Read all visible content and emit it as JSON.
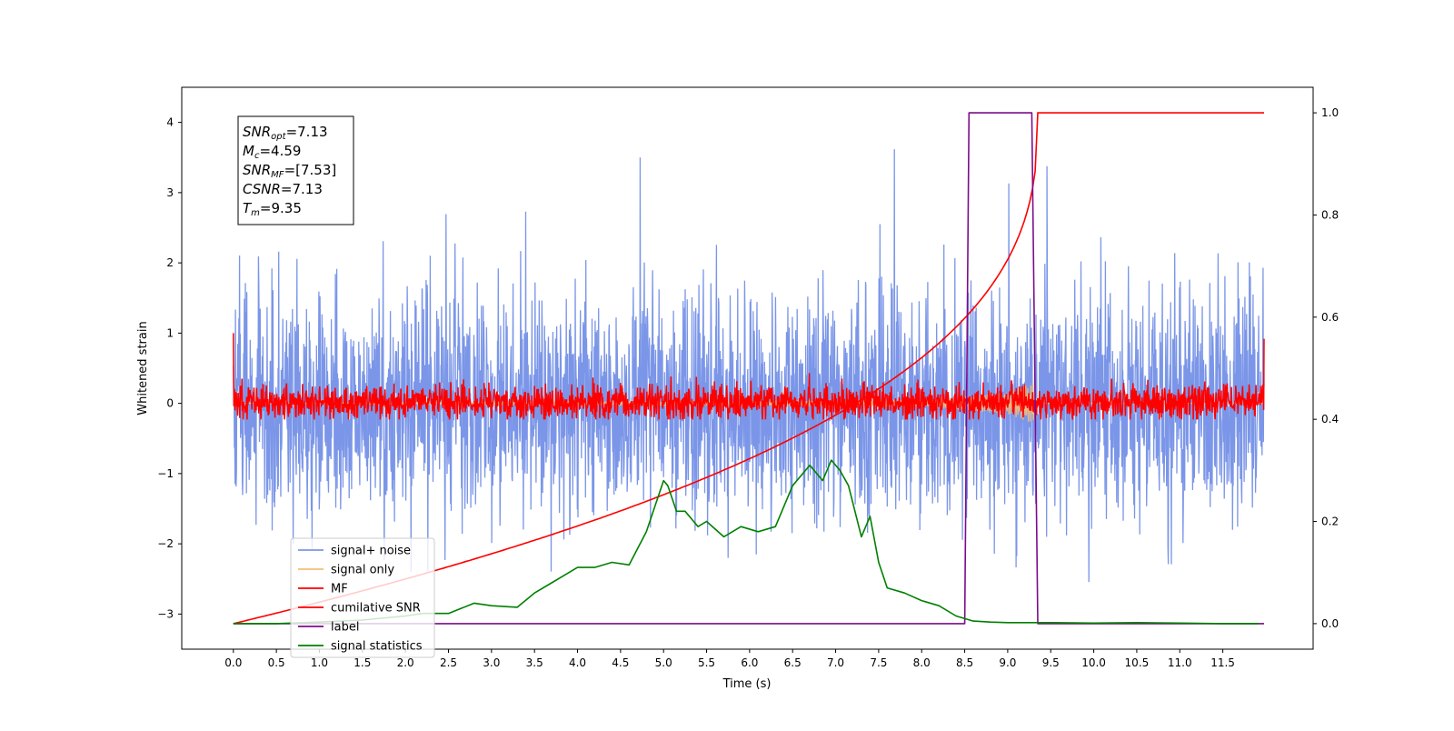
{
  "chart_data": {
    "type": "line",
    "xlabel": "Time (s)",
    "ylabel": "Whitened strain",
    "xlim": [
      -0.6,
      12.55
    ],
    "ylim": [
      -3.5,
      4.5
    ],
    "y2lim": [
      -0.05,
      1.05
    ],
    "x_ticks": [
      0.0,
      0.5,
      1.0,
      1.5,
      2.0,
      2.5,
      3.0,
      3.5,
      4.0,
      4.5,
      5.0,
      5.5,
      6.0,
      6.5,
      7.0,
      7.5,
      8.0,
      8.5,
      9.0,
      9.5,
      10.0,
      10.5,
      11.0,
      11.5
    ],
    "x_tick_labels": [
      "0.0",
      "0.5",
      "1.0",
      "1.5",
      "2.0",
      "2.5",
      "3.0",
      "3.5",
      "4.0",
      "4.5",
      "5.0",
      "5.5",
      "6.0",
      "6.5",
      "7.0",
      "7.5",
      "8.0",
      "8.5",
      "9.0",
      "9.5",
      "10.0",
      "10.5",
      "11.0",
      "11.5"
    ],
    "y_ticks": [
      -3,
      -2,
      -1,
      0,
      1,
      2,
      3,
      4
    ],
    "y_tick_labels": [
      "−3",
      "−2",
      "−1",
      "0",
      "1",
      "2",
      "3",
      "4"
    ],
    "y2_ticks": [
      0.0,
      0.2,
      0.4,
      0.6,
      0.8,
      1.0
    ],
    "y2_tick_labels": [
      "0.0",
      "0.2",
      "0.4",
      "0.6",
      "0.8",
      "1.0"
    ],
    "grid": false,
    "legend_position": "lower-left",
    "annotation": [
      {
        "label": "SNR",
        "sub": "opt",
        "value": "=7.13"
      },
      {
        "label": "M",
        "sub": "c",
        "value": "=4.59"
      },
      {
        "label": "SNR",
        "sub": "MF",
        "value": "=[7.53]"
      },
      {
        "label": "CSNR",
        "sub": "",
        "value": "=7.13"
      },
      {
        "label": "T",
        "sub": "m",
        "value": "=9.35"
      }
    ],
    "series": [
      {
        "name": "signal+ noise",
        "axis": "left",
        "color": "#7b96e8",
        "x_range": [
          0.0,
          11.98
        ],
        "noise_std": 0.95,
        "approx_max": 4.1,
        "approx_min": -3.15
      },
      {
        "name": "signal only",
        "axis": "left",
        "color": "#f5bd78",
        "x_range": [
          0.0,
          11.98
        ],
        "description_points": [
          [
            0.0,
            0.0
          ],
          [
            8.0,
            0.05
          ],
          [
            9.0,
            0.15
          ],
          [
            9.3,
            0.3
          ],
          [
            9.35,
            0.0
          ],
          [
            11.98,
            0.0
          ]
        ]
      },
      {
        "name": "MF",
        "axis": "left",
        "color": "#ff0000",
        "x_range": [
          0.0,
          11.98
        ],
        "noise_std": 0.12,
        "start_value": 1.0,
        "end_value": 0.92
      },
      {
        "name": "cumilative SNR",
        "axis": "right",
        "color": "#ff0000",
        "x": [
          0.0,
          0.5,
          1.0,
          1.5,
          2.0,
          2.5,
          3.0,
          3.5,
          4.0,
          4.5,
          5.0,
          5.5,
          6.0,
          6.5,
          7.0,
          7.5,
          8.0,
          8.5,
          9.0,
          9.2,
          9.3,
          9.35,
          9.4,
          11.98
        ],
        "y": [
          0.0,
          0.08,
          0.1,
          0.12,
          0.14,
          0.16,
          0.18,
          0.2,
          0.22,
          0.245,
          0.27,
          0.3,
          0.33,
          0.365,
          0.4,
          0.445,
          0.5,
          0.57,
          0.67,
          0.76,
          0.88,
          1.0,
          1.0,
          1.0
        ]
      },
      {
        "name": "label",
        "axis": "right",
        "color": "#7b0c8c",
        "x": [
          0.0,
          3.58,
          3.58,
          3.58,
          8.5,
          8.55,
          9.28,
          9.35,
          11.98
        ],
        "y": [
          0.0,
          0.0,
          0.0,
          0.0,
          0.0,
          1.0,
          1.0,
          0.0,
          0.0
        ]
      },
      {
        "name": "signal statistics",
        "axis": "right",
        "color": "#008000",
        "x": [
          0.0,
          0.5,
          1.0,
          1.5,
          2.0,
          2.2,
          2.5,
          2.8,
          3.0,
          3.3,
          3.5,
          3.7,
          4.0,
          4.2,
          4.4,
          4.6,
          4.8,
          5.0,
          5.05,
          5.15,
          5.25,
          5.4,
          5.5,
          5.7,
          5.9,
          6.1,
          6.3,
          6.5,
          6.7,
          6.85,
          6.95,
          7.05,
          7.15,
          7.3,
          7.4,
          7.5,
          7.6,
          7.8,
          8.0,
          8.2,
          8.4,
          8.6,
          8.8,
          9.0,
          9.5,
          10.0,
          10.5,
          11.0,
          11.5,
          11.92
        ],
        "y": [
          0.0,
          0.0,
          0.003,
          0.007,
          0.015,
          0.02,
          0.02,
          0.04,
          0.035,
          0.032,
          0.06,
          0.08,
          0.11,
          0.11,
          0.12,
          0.115,
          0.18,
          0.28,
          0.27,
          0.22,
          0.22,
          0.19,
          0.2,
          0.17,
          0.19,
          0.18,
          0.19,
          0.27,
          0.31,
          0.28,
          0.32,
          0.3,
          0.27,
          0.17,
          0.21,
          0.12,
          0.07,
          0.06,
          0.045,
          0.035,
          0.015,
          0.005,
          0.003,
          0.002,
          0.002,
          0.001,
          0.002,
          0.001,
          0.0,
          0.0
        ]
      }
    ]
  }
}
